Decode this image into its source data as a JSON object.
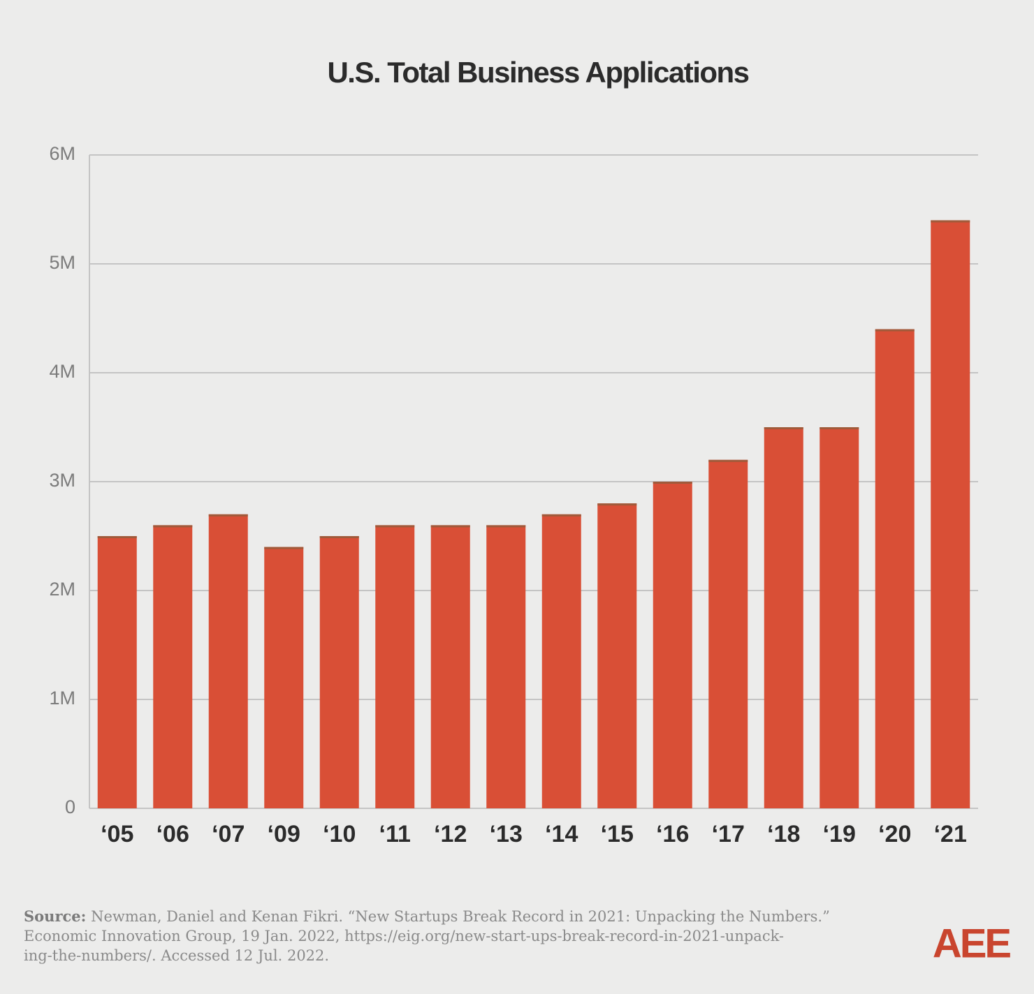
{
  "chart_data": {
    "type": "bar",
    "title": "U.S. Total Business Applications",
    "categories": [
      "‘05",
      "‘06",
      "‘07",
      "‘09",
      "‘10",
      "‘11",
      "‘12",
      "‘13",
      "‘14",
      "‘15",
      "‘16",
      "‘17",
      "‘18",
      "‘19",
      "‘20",
      "‘21"
    ],
    "values": [
      2500000,
      2600000,
      2700000,
      2400000,
      2500000,
      2600000,
      2600000,
      2600000,
      2700000,
      2800000,
      3000000,
      3200000,
      3500000,
      3500000,
      4400000,
      5400000
    ],
    "color": "#d94f36",
    "ylim": [
      0,
      6000000
    ],
    "yticks": [
      0,
      {
        "value": 1000000,
        "label": "1M"
      },
      {
        "value": 2000000,
        "label": "2M"
      },
      {
        "value": 3000000,
        "label": "3M"
      },
      {
        "value": 4000000,
        "label": "4M"
      },
      {
        "value": 5000000,
        "label": "5M"
      },
      {
        "value": 6000000,
        "label": "6M"
      }
    ],
    "grid": true,
    "source_label": "Source:",
    "source_lines": [
      "Newman, Daniel and Kenan Fikri. “New Startups Break Record in 2021: Unpacking the Numbers.”",
      "Economic Innovation Group, 19 Jan. 2022, https://eig.org/new-start-ups-break-record-in-2021-unpack-",
      "ing-the-numbers/. Accessed 12 Jul. 2022."
    ],
    "logo": "AEE"
  }
}
